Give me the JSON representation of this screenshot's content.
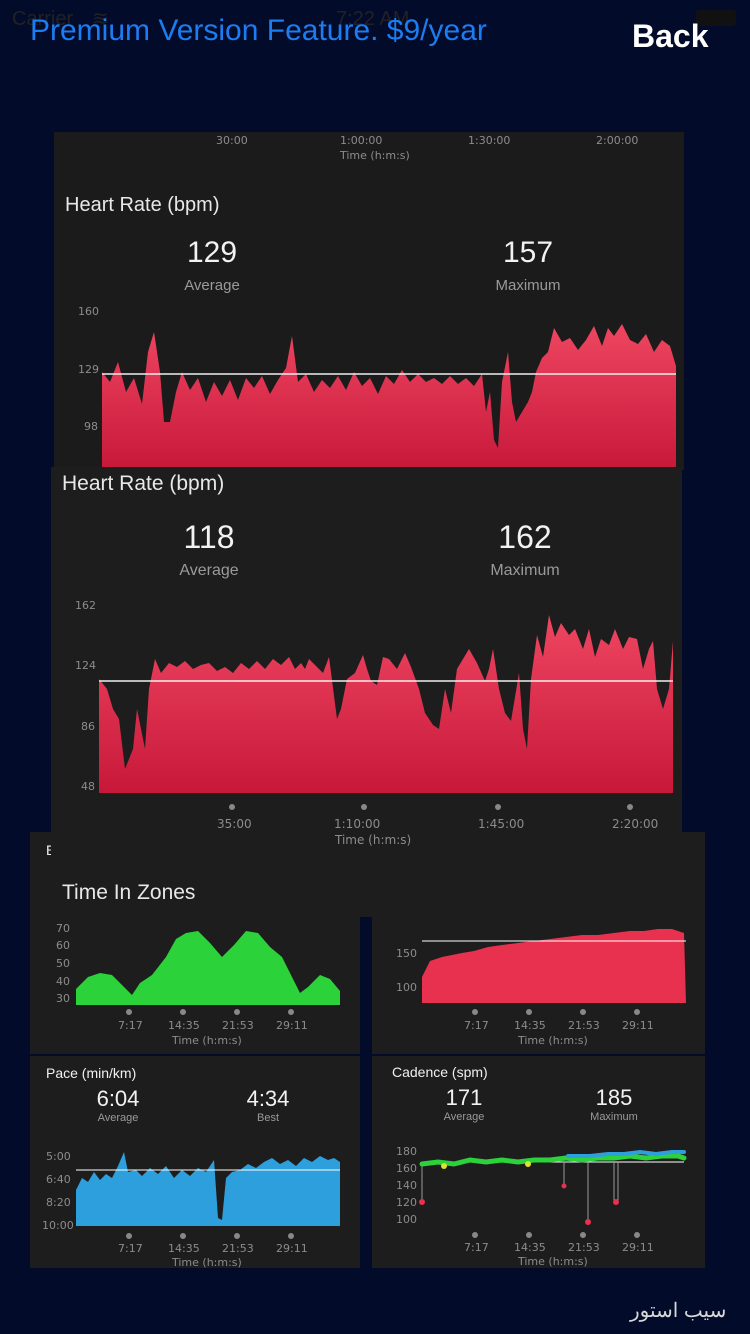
{
  "status": {
    "carrier": "Carrier",
    "time": "7:22 AM"
  },
  "header": {
    "premium": "Premium Version Feature. $9/year",
    "back": "Back"
  },
  "hr1": {
    "top_ticks": [
      "30:00",
      "1:00:00",
      "1:30:00",
      "2:00:00"
    ],
    "top_axis": "Time (h:m:s)",
    "title": "Heart Rate (bpm)",
    "avg": "129",
    "avg_label": "Average",
    "max": "157",
    "max_label": "Maximum",
    "yticks": [
      "160",
      "129",
      "98"
    ]
  },
  "hr2": {
    "title": "Heart Rate (bpm)",
    "avg": "118",
    "avg_label": "Average",
    "max": "162",
    "max_label": "Maximum",
    "yticks": [
      "162",
      "124",
      "86",
      "48"
    ],
    "xticks": [
      "35:00",
      "1:10:00",
      "1:45:00",
      "2:20:00"
    ],
    "xaxis": "Time (h:m:s)",
    "zones_title": "Time In Zones"
  },
  "elev": {
    "title_fragment": "E",
    "yticks": [
      "70",
      "60",
      "50",
      "40",
      "30"
    ],
    "xticks": [
      "7:17",
      "14:35",
      "21:53",
      "29:11"
    ],
    "xaxis": "Time (h:m:s)"
  },
  "hr3": {
    "yticks": [
      "150",
      "100"
    ],
    "xticks": [
      "7:17",
      "14:35",
      "21:53",
      "29:11"
    ],
    "xaxis": "Time (h:m:s)"
  },
  "pace": {
    "title": "Pace (min/km)",
    "avg": "6:04",
    "avg_label": "Average",
    "best": "4:34",
    "best_label": "Best",
    "yticks": [
      "5:00",
      "6:40",
      "8:20",
      "10:00"
    ],
    "xticks": [
      "7:17",
      "14:35",
      "21:53",
      "29:11"
    ],
    "xaxis": "Time (h:m:s)"
  },
  "cadence": {
    "title": "Cadence (spm)",
    "avg": "171",
    "avg_label": "Average",
    "max": "185",
    "max_label": "Maximum",
    "yticks": [
      "180",
      "160",
      "140",
      "120",
      "100"
    ],
    "xticks": [
      "7:17",
      "14:35",
      "21:53",
      "29:11"
    ],
    "xaxis": "Time (h:m:s)"
  },
  "watermark": "سیب استور",
  "colors": {
    "hr": "#e8304f",
    "elev": "#2bd23a",
    "pace": "#2d9fdc",
    "link": "#1c7cf2",
    "background": "#020b2a"
  }
}
